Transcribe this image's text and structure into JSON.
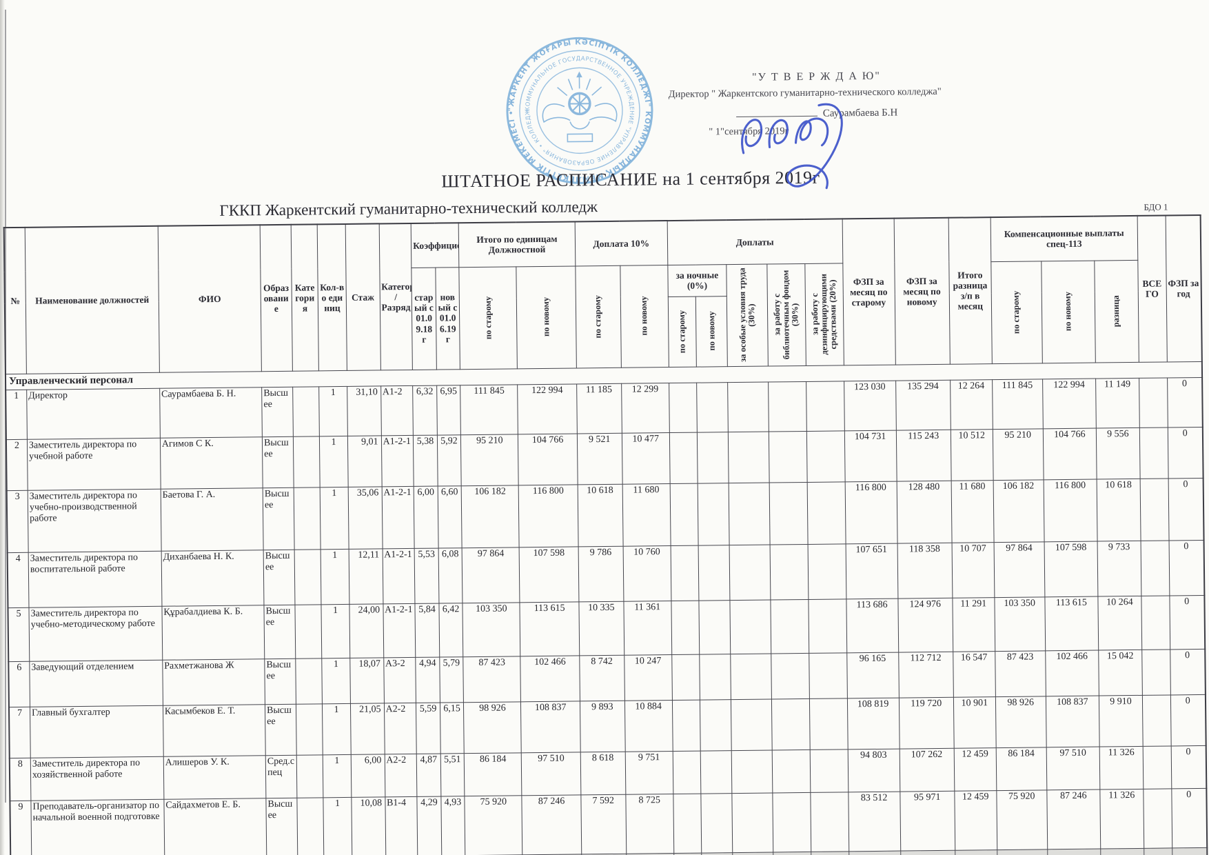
{
  "colors": {
    "seal_blue": "#5e9dd2",
    "ink_blue": "#3a50c8",
    "text_ink": "#26262c"
  },
  "bdo": "БДО 1",
  "approval": {
    "line1": "\"У Т В Е Р Ж Д А Ю\"",
    "line2": "Директор \" Жаркентского гуманитарно-технического колледжа\"",
    "name": "Саурамбаева Б.Н",
    "date_line": "\" 1\"сентября 2019г"
  },
  "seal": {
    "ring1": "\"ЖАРКЕНТ ЖОҒАРЫ КӘСІПТІК КОЛЛЕДЖІ\" КОММУНАЛДЫҚ МЕМЛЕКЕТТІК МЕКЕМЕСІ • БІЛІМ БАСҚАРМАСЫ •",
    "ring2": "КОММУНАЛЬНОЕ ГОСУДАРСТВЕННОЕ УЧРЕЖДЕНИЕ \"УПРАВЛЕНИЕ ОБРАЗОВАНИЯ\" • КОЛЛЕДЖ •"
  },
  "title": "ШТАТНОЕ РАСПИСАНИЕ на 1 сентября 2019г",
  "subtitle": "ГККП Жаркентский гуманитарно-технический колледж",
  "table": {
    "columns": {
      "num": "№",
      "position": "Наименование должностей",
      "fio": "ФИО",
      "education": "Образование",
      "category": "Категория",
      "units": "Кол-во единиц",
      "experience": "Стаж",
      "grade": "Категория / Разряд",
      "coef_group": "Коэффициент",
      "coef_old": "старый с 01.09.18 г",
      "coef_new": "новый с 01.06.19 г",
      "itogo_group": "Итого по единицам Должностной",
      "by_old": "по старому",
      "by_new": "по новому",
      "doplata10": "Доплата 10%",
      "doplaty": "Доплаты",
      "night": "за ночные (0%)",
      "special": "за особые условия труда (30%)",
      "library": "за работу с библиотечным фондом (30%)",
      "disinfect": "за работу с дезинфицирующими средствами (20%)",
      "fzp_old": "ФЗП за месяц по старому",
      "fzp_new": "ФЗП за месяц по новому",
      "diff_month": "Итого разница з/п в месяц",
      "comp_group": "Компенсационные выплаты спец-113",
      "raznica": "разница",
      "vsego": "ВСЕГО",
      "fzp_year": "ФЗП за год"
    },
    "section": "Управленческий персонал",
    "rows": [
      {
        "c": [
          "1",
          "Директор",
          "Саурамбаева Б. Н.",
          "Высшее",
          "",
          "1",
          "31,10",
          "А1-2",
          "6,32",
          "6,95",
          "111 845",
          "122 994",
          "11 185",
          "12 299",
          "",
          "",
          "",
          "",
          "",
          "123 030",
          "135 294",
          "12 264",
          "111 845",
          "122 994",
          "11 149",
          "",
          "0"
        ]
      },
      {
        "c": [
          "2",
          "Заместитель директора по учебной работе",
          "Агимов С К.",
          "Высшее",
          "",
          "1",
          "9,01",
          "А1-2-1",
          "5,38",
          "5,92",
          "95 210",
          "104 766",
          "9 521",
          "10 477",
          "",
          "",
          "",
          "",
          "",
          "104 731",
          "115 243",
          "10 512",
          "95 210",
          "104 766",
          "9 556",
          "",
          "0"
        ]
      },
      {
        "c": [
          "3",
          "Заместитель директора по учебно-производственной работе",
          "Баетова Г. А.",
          "Высшее",
          "",
          "1",
          "35,06",
          "А1-2-1",
          "6,00",
          "6,60",
          "106 182",
          "116 800",
          "10 618",
          "11 680",
          "",
          "",
          "",
          "",
          "",
          "116 800",
          "128 480",
          "11 680",
          "106 182",
          "116 800",
          "10 618",
          "",
          "0"
        ]
      },
      {
        "c": [
          "4",
          "Заместитель директора по воспитательной работе",
          "Диханбаева Н. К.",
          "Высшее",
          "",
          "1",
          "12,11",
          "А1-2-1",
          "5,53",
          "6,08",
          "97 864",
          "107 598",
          "9 786",
          "10 760",
          "",
          "",
          "",
          "",
          "",
          "107 651",
          "118 358",
          "10 707",
          "97 864",
          "107 598",
          "9 733",
          "",
          "0"
        ]
      },
      {
        "c": [
          "5",
          "Заместитель директора по учебно-методическому работе",
          "Құрабалдиева К. Б.",
          "Высшее",
          "",
          "1",
          "24,00",
          "А1-2-1",
          "5,84",
          "6,42",
          "103 350",
          "113 615",
          "10 335",
          "11 361",
          "",
          "",
          "",
          "",
          "",
          "113 686",
          "124 976",
          "11 291",
          "103 350",
          "113 615",
          "10 264",
          "",
          "0"
        ]
      },
      {
        "c": [
          "6",
          "Заведующий отделением",
          "Рахметжанова Ж",
          "Высшее",
          "",
          "1",
          "18,07",
          "А3-2",
          "4,94",
          "5,79",
          "87 423",
          "102 466",
          "8 742",
          "10 247",
          "",
          "",
          "",
          "",
          "",
          "96 165",
          "112 712",
          "16 547",
          "87 423",
          "102 466",
          "15 042",
          "",
          "0"
        ]
      },
      {
        "c": [
          "7",
          "Главный бухгалтер",
          "Касымбеков Е. Т.",
          "Высшее",
          "",
          "1",
          "21,05",
          "А2-2",
          "5,59",
          "6,15",
          "98 926",
          "108 837",
          "9 893",
          "10 884",
          "",
          "",
          "",
          "",
          "",
          "108 819",
          "119 720",
          "10 901",
          "98 926",
          "108 837",
          "9 910",
          "",
          "0"
        ]
      },
      {
        "c": [
          "8",
          "Заместитель директора по хозяйственной работе",
          "Алишеров У. К.",
          "Сред.спец",
          "",
          "1",
          "6,00",
          "А2-2",
          "4,87",
          "5,51",
          "86 184",
          "97 510",
          "8 618",
          "9 751",
          "",
          "",
          "",
          "",
          "",
          "94 803",
          "107 262",
          "12 459",
          "86 184",
          "97 510",
          "11 326",
          "",
          "0"
        ]
      },
      {
        "c": [
          "9",
          "Преподаватель-организатор по начальной военной подготовке",
          "Сайдахметов Е. Б.",
          "Высшее",
          "",
          "1",
          "10,08",
          "В1-4",
          "4,29",
          "4,93",
          "75 920",
          "87 246",
          "7 592",
          "8 725",
          "",
          "",
          "",
          "",
          "",
          "83 512",
          "95 971",
          "12 459",
          "75 920",
          "87 246",
          "11 326",
          "",
          "0"
        ]
      }
    ]
  }
}
